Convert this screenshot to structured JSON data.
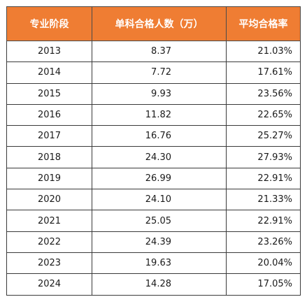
{
  "chart_data": {
    "type": "table",
    "columns": [
      "专业阶段",
      "单科合格人数（万）",
      "平均合格率"
    ],
    "rows": [
      [
        "2013",
        "8.37",
        "21.03%"
      ],
      [
        "2014",
        "7.72",
        "17.61%"
      ],
      [
        "2015",
        "9.93",
        "23.56%"
      ],
      [
        "2016",
        "11.82",
        "22.65%"
      ],
      [
        "2017",
        "16.76",
        "25.27%"
      ],
      [
        "2018",
        "24.30",
        "27.93%"
      ],
      [
        "2019",
        "26.99",
        "22.91%"
      ],
      [
        "2020",
        "24.10",
        "21.33%"
      ],
      [
        "2021",
        "25.05",
        "22.91%"
      ],
      [
        "2022",
        "24.39",
        "23.26%"
      ],
      [
        "2023",
        "19.63",
        "20.04%"
      ],
      [
        "2024",
        "14.28",
        "17.05%"
      ]
    ]
  },
  "colors": {
    "header_background": "#ef7d33",
    "header_text": "#ffffff",
    "border": "#3a3a3a"
  }
}
